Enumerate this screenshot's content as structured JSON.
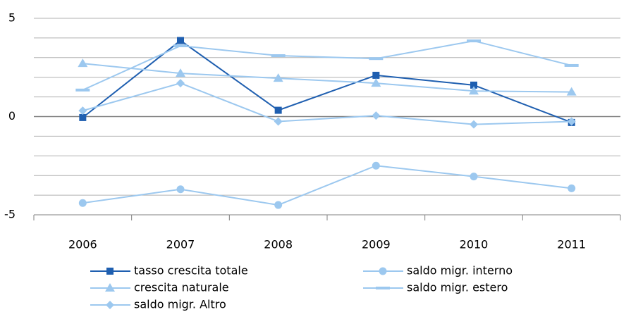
{
  "chart_data": {
    "type": "line",
    "categories": [
      "2006",
      "2007",
      "2008",
      "2009",
      "2010",
      "2011"
    ],
    "series": [
      {
        "name": "tasso crescita totale",
        "color": "#1f5fb0",
        "marker": "square",
        "values": [
          -0.05,
          3.87,
          0.32,
          2.1,
          1.6,
          -0.3
        ]
      },
      {
        "name": "saldo migr. interno",
        "color": "#9cc8ef",
        "marker": "circle",
        "values": [
          -4.4,
          -3.7,
          -4.5,
          -2.5,
          -3.05,
          -3.65
        ]
      },
      {
        "name": "crescita naturale",
        "color": "#9cc8ef",
        "marker": "triangle",
        "values": [
          2.7,
          2.2,
          1.95,
          1.7,
          1.3,
          1.25
        ]
      },
      {
        "name": "saldo migr. estero",
        "color": "#9cc8ef",
        "marker": "dash",
        "values": [
          1.35,
          3.6,
          3.1,
          2.95,
          3.85,
          2.6
        ]
      },
      {
        "name": "saldo migr. Altro",
        "color": "#9cc8ef",
        "marker": "diamond",
        "values": [
          0.3,
          1.7,
          -0.25,
          0.05,
          -0.4,
          -0.25
        ]
      }
    ],
    "ylim": [
      -5,
      5
    ],
    "yticks": [
      5,
      0,
      -5
    ],
    "ygrid": [
      -4,
      -3,
      -2,
      -1,
      1,
      2,
      3,
      4
    ],
    "grid": true
  }
}
